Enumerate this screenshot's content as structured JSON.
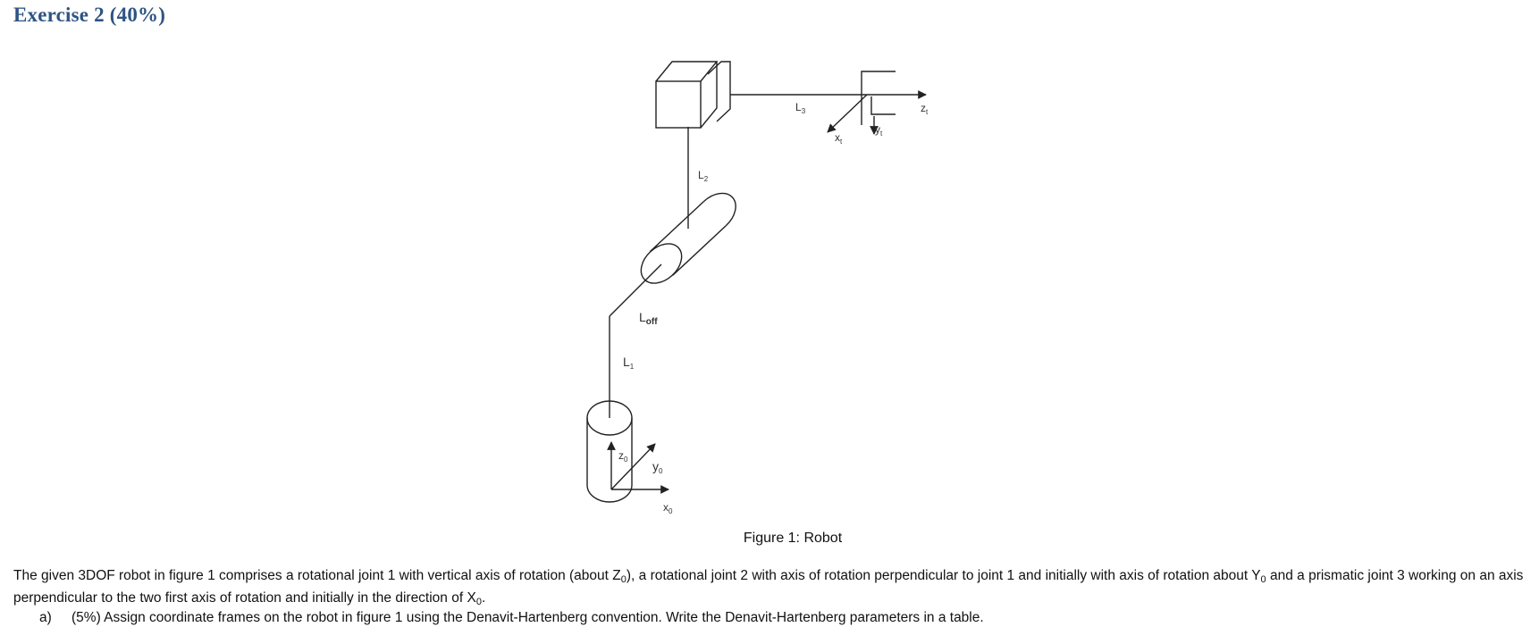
{
  "heading": "Exercise 2 (40%)",
  "figure": {
    "labels": {
      "L3": {
        "base": "L",
        "sub": "3"
      },
      "L2": {
        "base": "L",
        "sub": "2"
      },
      "Loff": {
        "base": "L",
        "sub": "off"
      },
      "L1": {
        "base": "L",
        "sub": "1"
      },
      "zt": {
        "base": "z",
        "sub": "t"
      },
      "xt": {
        "base": "x",
        "sub": "t"
      },
      "yt": {
        "base": "y",
        "sub": "t"
      },
      "z0": {
        "base": "z",
        "sub": "0"
      },
      "y0": {
        "base": "y",
        "sub": "0"
      },
      "x0": {
        "base": "x",
        "sub": "0"
      }
    },
    "caption": "Figure 1: Robot"
  },
  "paragraph": {
    "p1": "The given 3DOF robot in figure 1 comprises a rotational joint 1 with vertical axis of rotation (about Z",
    "s1": "0",
    "p2": "), a rotational joint 2 with axis of rotation perpendicular to joint 1 and initially with axis of rotation about Y",
    "s2": "0",
    "p3": " and a prismatic joint 3 working on an axis perpendicular to the two first axis of rotation and initially in the direction of X",
    "s3": "0",
    "p4": "."
  },
  "item_a": {
    "label": "a)",
    "text": "(5%) Assign coordinate frames on the robot in figure 1 using the Denavit-Hartenberg convention. Write the Denavit-Hartenberg parameters in a table."
  }
}
